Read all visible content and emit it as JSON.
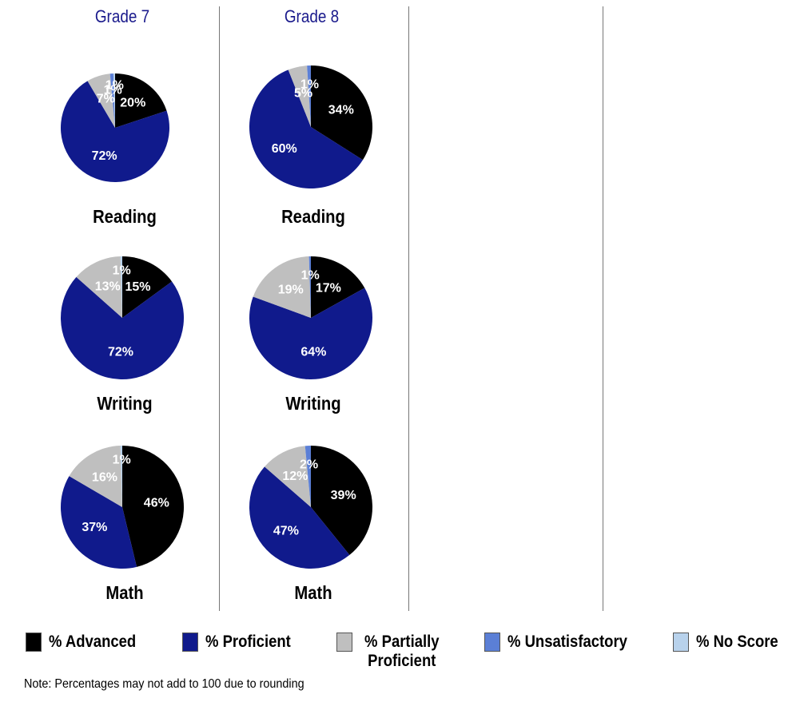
{
  "colors": {
    "advanced": "#000000",
    "proficient": "#101a8c",
    "partially_proficient": "#bfbfbf",
    "unsatisfactory": "#5b7fd6",
    "no_score": "#b8d2ec"
  },
  "grades": [
    {
      "title": "Grade 7",
      "subjects": [
        "Reading",
        "Writing",
        "Math"
      ]
    },
    {
      "title": "Grade 8",
      "subjects": [
        "Reading",
        "Writing",
        "Math"
      ]
    }
  ],
  "chart_data": [
    {
      "type": "pie",
      "grade": "Grade 7",
      "subject": "Reading",
      "slices": [
        {
          "category": "% Advanced",
          "value": 20,
          "label": "20%"
        },
        {
          "category": "% Proficient",
          "value": 72,
          "label": "72%"
        },
        {
          "category": "% Partially Proficient",
          "value": 7,
          "label": "7%"
        },
        {
          "category": "% Unsatisfactory",
          "value": 1,
          "label": "1%"
        },
        {
          "category": "% No Score",
          "value": 0.5,
          "label": "1%"
        }
      ]
    },
    {
      "type": "pie",
      "grade": "Grade 8",
      "subject": "Reading",
      "slices": [
        {
          "category": "% Advanced",
          "value": 34,
          "label": "34%"
        },
        {
          "category": "% Proficient",
          "value": 60,
          "label": "60%"
        },
        {
          "category": "% Partially Proficient",
          "value": 5,
          "label": "5%"
        },
        {
          "category": "% Unsatisfactory",
          "value": 1,
          "label": "1%"
        },
        {
          "category": "% No Score",
          "value": 0,
          "label": ""
        }
      ]
    },
    {
      "type": "pie",
      "grade": "Grade 7",
      "subject": "Writing",
      "slices": [
        {
          "category": "% Advanced",
          "value": 15,
          "label": "15%"
        },
        {
          "category": "% Proficient",
          "value": 72,
          "label": "72%"
        },
        {
          "category": "% Partially Proficient",
          "value": 13,
          "label": "13%"
        },
        {
          "category": "% Unsatisfactory",
          "value": 0,
          "label": ""
        },
        {
          "category": "% No Score",
          "value": 0.5,
          "label": "1%"
        }
      ]
    },
    {
      "type": "pie",
      "grade": "Grade 8",
      "subject": "Writing",
      "slices": [
        {
          "category": "% Advanced",
          "value": 17,
          "label": "17%"
        },
        {
          "category": "% Proficient",
          "value": 64,
          "label": "64%"
        },
        {
          "category": "% Partially Proficient",
          "value": 19,
          "label": "19%"
        },
        {
          "category": "% Unsatisfactory",
          "value": 0.5,
          "label": "1%"
        },
        {
          "category": "% No Score",
          "value": 0,
          "label": ""
        }
      ]
    },
    {
      "type": "pie",
      "grade": "Grade 7",
      "subject": "Math",
      "slices": [
        {
          "category": "% Advanced",
          "value": 46,
          "label": "46%"
        },
        {
          "category": "% Proficient",
          "value": 37,
          "label": "37%"
        },
        {
          "category": "% Partially Proficient",
          "value": 16,
          "label": "16%"
        },
        {
          "category": "% Unsatisfactory",
          "value": 0,
          "label": ""
        },
        {
          "category": "% No Score",
          "value": 0.5,
          "label": "1%"
        }
      ]
    },
    {
      "type": "pie",
      "grade": "Grade 8",
      "subject": "Math",
      "slices": [
        {
          "category": "% Advanced",
          "value": 39,
          "label": "39%"
        },
        {
          "category": "% Proficient",
          "value": 47,
          "label": "47%"
        },
        {
          "category": "% Partially Proficient",
          "value": 12,
          "label": "12%"
        },
        {
          "category": "% Unsatisfactory",
          "value": 1.5,
          "label": "2%"
        },
        {
          "category": "% No Score",
          "value": 0,
          "label": ""
        }
      ]
    }
  ],
  "legend": [
    {
      "key": "advanced",
      "label": "% Advanced"
    },
    {
      "key": "proficient",
      "label": "% Proficient"
    },
    {
      "key": "partially_proficient",
      "label": "% Partially Proficient"
    },
    {
      "key": "unsatisfactory",
      "label": "% Unsatisfactory"
    },
    {
      "key": "no_score",
      "label": "% No Score"
    }
  ],
  "note": "Note: Percentages may not add to 100 due to rounding"
}
